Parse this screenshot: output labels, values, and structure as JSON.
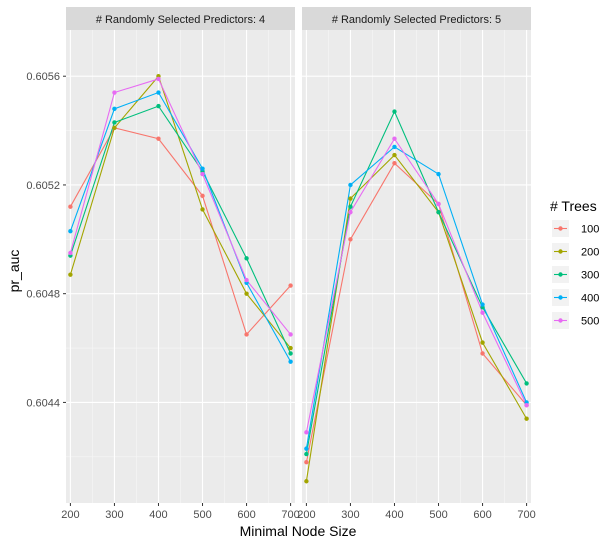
{
  "chart_data": {
    "type": "line",
    "xlabel": "Minimal Node Size",
    "ylabel": "pr_auc",
    "x": [
      200,
      300,
      400,
      500,
      600,
      700
    ],
    "x_ticks": [
      "200",
      "300",
      "400",
      "500",
      "600",
      "700"
    ],
    "xlim": [
      190,
      710
    ],
    "y_ticks": [
      0.6044,
      0.6048,
      0.6052,
      0.6056
    ],
    "y_tick_labels": [
      "0.6044",
      "0.6048",
      "0.6052",
      "0.6056"
    ],
    "ylim": [
      0.60403,
      0.60577
    ],
    "legend": {
      "title": "# Trees",
      "position": "right",
      "entries": [
        "100",
        "200",
        "300",
        "400",
        "500"
      ]
    },
    "colors": [
      "#F8766D",
      "#A3A500",
      "#00BF7D",
      "#00B0F6",
      "#E76BF3"
    ],
    "grid": true,
    "panels": [
      {
        "strip": "# Randomly Selected Predictors: 4",
        "series": [
          {
            "name": "100",
            "values": [
              0.60512,
              0.60541,
              0.60537,
              0.60516,
              0.60465,
              0.60483
            ]
          },
          {
            "name": "200",
            "values": [
              0.60487,
              0.60541,
              0.6056,
              0.60511,
              0.6048,
              0.6046
            ]
          },
          {
            "name": "300",
            "values": [
              0.60494,
              0.60543,
              0.60549,
              0.60525,
              0.60493,
              0.60458
            ]
          },
          {
            "name": "400",
            "values": [
              0.60503,
              0.60548,
              0.60554,
              0.60526,
              0.60484,
              0.60455
            ]
          },
          {
            "name": "500",
            "values": [
              0.60495,
              0.60554,
              0.60559,
              0.60524,
              0.60485,
              0.60465
            ]
          }
        ]
      },
      {
        "strip": "# Randomly Selected Predictors: 5",
        "series": [
          {
            "name": "100",
            "values": [
              0.60418,
              0.605,
              0.60528,
              0.60513,
              0.60458,
              0.60439
            ]
          },
          {
            "name": "200",
            "values": [
              0.60411,
              0.60515,
              0.60531,
              0.6051,
              0.60462,
              0.60434
            ]
          },
          {
            "name": "300",
            "values": [
              0.60421,
              0.60512,
              0.60547,
              0.6051,
              0.60475,
              0.60447
            ]
          },
          {
            "name": "400",
            "values": [
              0.60423,
              0.6052,
              0.60534,
              0.60524,
              0.60476,
              0.6044
            ]
          },
          {
            "name": "500",
            "values": [
              0.60429,
              0.6051,
              0.60537,
              0.60513,
              0.60473,
              0.60439
            ]
          }
        ]
      }
    ]
  }
}
